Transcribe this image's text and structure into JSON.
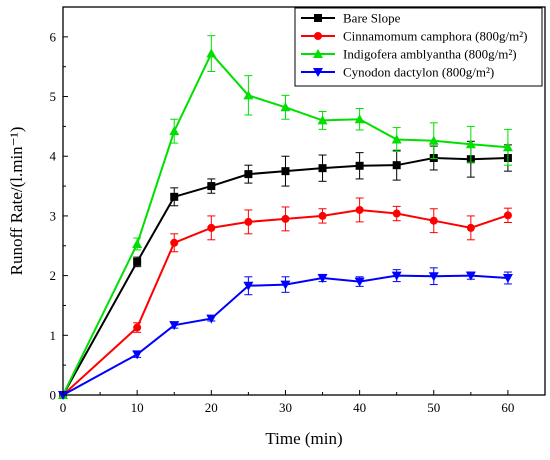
{
  "chart_data": {
    "type": "line",
    "xlabel": "Time (min)",
    "ylabel": "Runoff Rate/(l.min⁻¹)",
    "xlim": [
      0,
      65
    ],
    "ylim": [
      0,
      6.5
    ],
    "xticks": [
      0,
      10,
      20,
      30,
      40,
      50,
      60
    ],
    "yticks": [
      0,
      1,
      2,
      3,
      4,
      5,
      6
    ],
    "grid": false,
    "legend_position": "top-right",
    "series": [
      {
        "name": "Bare Slope",
        "color": "#000000",
        "marker": "square",
        "x": [
          0,
          10,
          15,
          20,
          25,
          30,
          35,
          40,
          45,
          50,
          55,
          60
        ],
        "y": [
          0,
          2.23,
          3.32,
          3.5,
          3.7,
          3.75,
          3.8,
          3.84,
          3.85,
          3.97,
          3.95,
          3.97
        ],
        "err": [
          0,
          0.08,
          0.15,
          0.12,
          0.15,
          0.25,
          0.22,
          0.22,
          0.25,
          0.2,
          0.3,
          0.22
        ]
      },
      {
        "name": "Cinnamomum camphora (800g/m²)",
        "color": "#ff0000",
        "marker": "circle",
        "x": [
          0,
          10,
          15,
          20,
          25,
          30,
          35,
          40,
          45,
          50,
          55,
          60
        ],
        "y": [
          0,
          1.13,
          2.55,
          2.8,
          2.9,
          2.95,
          3.0,
          3.1,
          3.04,
          2.92,
          2.8,
          3.01
        ],
        "err": [
          0,
          0.08,
          0.15,
          0.2,
          0.2,
          0.2,
          0.12,
          0.2,
          0.12,
          0.2,
          0.2,
          0.12
        ]
      },
      {
        "name": "Indigofera amblyantha (800g/m²)",
        "color": "#00e000",
        "marker": "triangle-up",
        "x": [
          0,
          10,
          15,
          20,
          25,
          30,
          35,
          40,
          45,
          50,
          55,
          60
        ],
        "y": [
          0,
          2.53,
          4.42,
          5.72,
          5.02,
          4.82,
          4.6,
          4.62,
          4.28,
          4.26,
          4.2,
          4.15
        ],
        "err": [
          0,
          0.1,
          0.2,
          0.3,
          0.33,
          0.2,
          0.15,
          0.18,
          0.2,
          0.3,
          0.3,
          0.3
        ]
      },
      {
        "name": "Cynodon dactylon (800g/m²)",
        "color": "#0000ff",
        "marker": "triangle-down",
        "x": [
          0,
          10,
          15,
          20,
          25,
          30,
          35,
          40,
          45,
          50,
          55,
          60
        ],
        "y": [
          0,
          0.68,
          1.17,
          1.28,
          1.83,
          1.85,
          1.96,
          1.9,
          2.0,
          1.99,
          2.0,
          1.96
        ],
        "err": [
          0,
          0.05,
          0.05,
          0.04,
          0.15,
          0.13,
          0.06,
          0.08,
          0.1,
          0.14,
          0.06,
          0.1
        ]
      }
    ]
  }
}
